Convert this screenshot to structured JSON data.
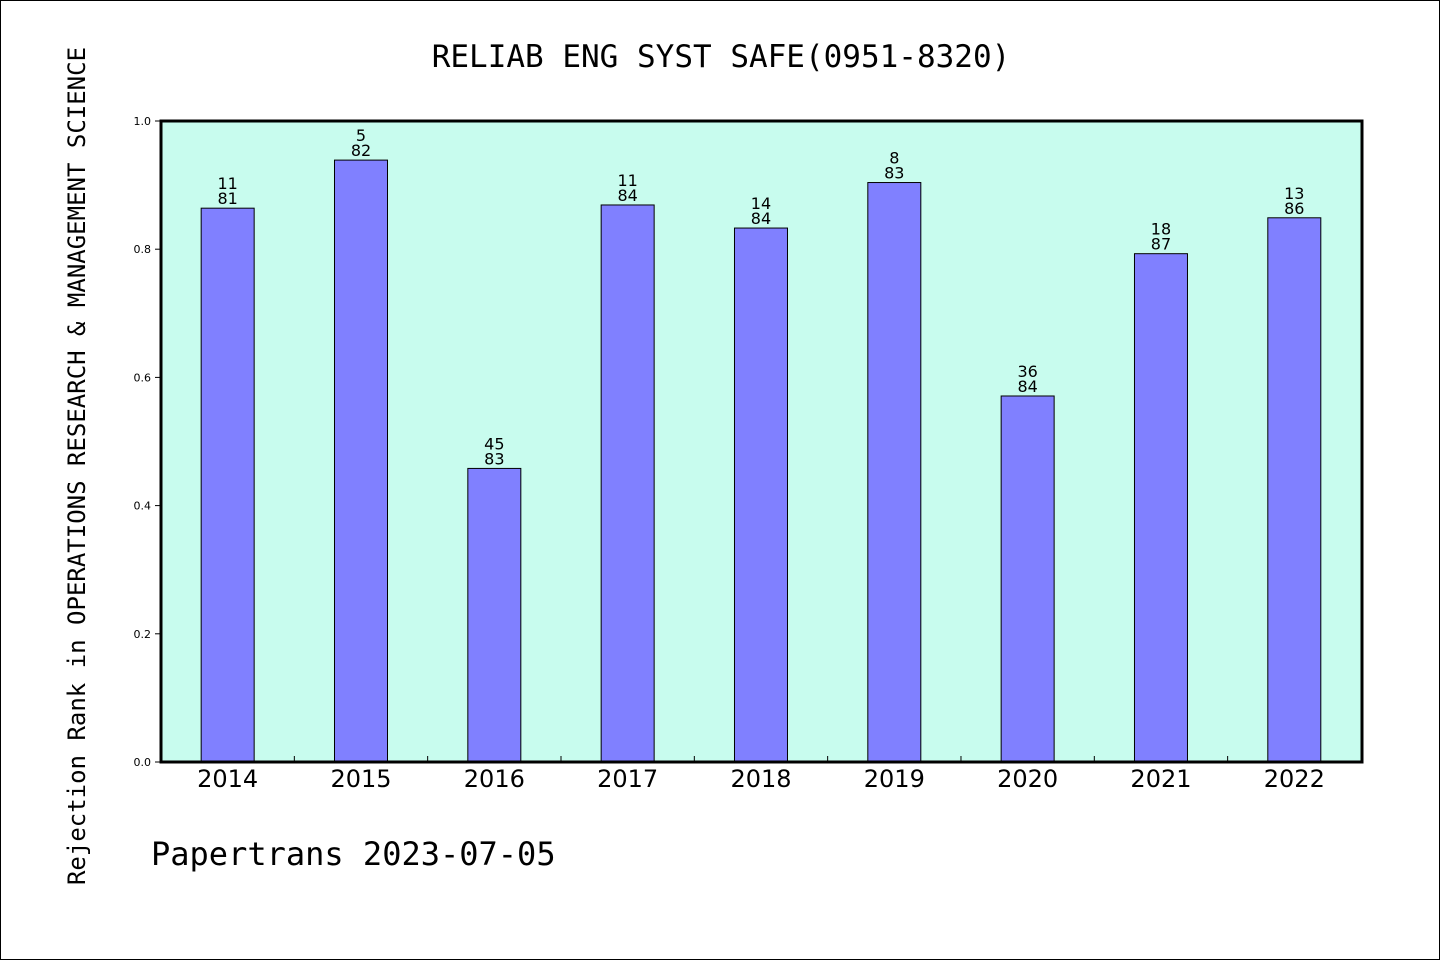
{
  "colors": {
    "plot_background": "#c8fcee",
    "bar_fill": "#8080ff",
    "bar_stroke": "#000000",
    "frame": "#000000"
  },
  "footer": "Papertrans 2023-07-05",
  "chart_data": {
    "type": "bar",
    "title": "RELIAB ENG SYST SAFE(0951-8320)",
    "xlabel": "",
    "ylabel": "Rejection Rank in OPERATIONS RESEARCH & MANAGEMENT SCIENCE",
    "ylim": [
      0,
      1.0
    ],
    "yticks": [
      "0.0",
      "0.2",
      "0.4",
      "0.6",
      "0.8",
      "1.0"
    ],
    "grid": false,
    "categories": [
      "2014",
      "2015",
      "2016",
      "2017",
      "2018",
      "2019",
      "2020",
      "2021",
      "2022"
    ],
    "values": [
      0.864,
      0.939,
      0.458,
      0.869,
      0.833,
      0.904,
      0.571,
      0.793,
      0.849
    ],
    "bar_labels": [
      {
        "rank": "11",
        "total": "81"
      },
      {
        "rank": "5",
        "total": "82"
      },
      {
        "rank": "45",
        "total": "83"
      },
      {
        "rank": "11",
        "total": "84"
      },
      {
        "rank": "14",
        "total": "84"
      },
      {
        "rank": "8",
        "total": "83"
      },
      {
        "rank": "36",
        "total": "84"
      },
      {
        "rank": "18",
        "total": "87"
      },
      {
        "rank": "13",
        "total": "86"
      }
    ]
  }
}
